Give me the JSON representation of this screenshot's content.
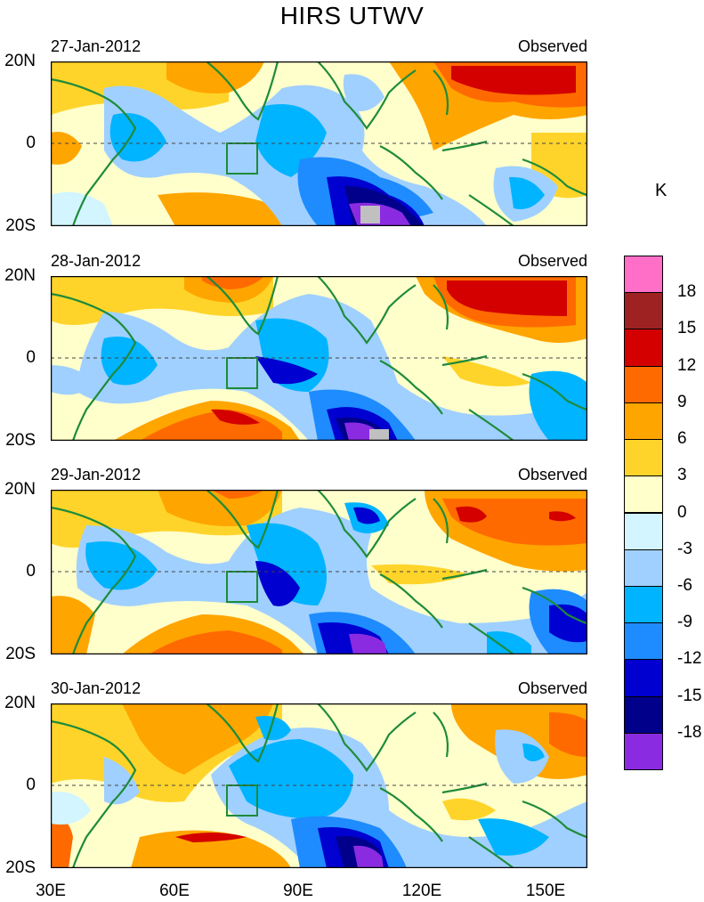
{
  "title": "HIRS UTWV",
  "panels": [
    {
      "date": "27-Jan-2012",
      "label": "Observed"
    },
    {
      "date": "28-Jan-2012",
      "label": "Observed"
    },
    {
      "date": "29-Jan-2012",
      "label": "Observed"
    },
    {
      "date": "30-Jan-2012",
      "label": "Observed"
    }
  ],
  "axes": {
    "lat_labels": [
      "20N",
      "0",
      "20S"
    ],
    "lon_labels": [
      "30E",
      "60E",
      "90E",
      "120E",
      "150E"
    ]
  },
  "colorbar": {
    "unit": "K",
    "labels": [
      "18",
      "15",
      "12",
      "9",
      "6",
      "3",
      "0",
      "-3",
      "-6",
      "-9",
      "-12",
      "-15",
      "-18"
    ],
    "colors": [
      "#ff6ec7",
      "#9e2222",
      "#d40000",
      "#ff6a00",
      "#ffa500",
      "#ffd42a",
      "#ffffcc",
      "#d2f5ff",
      "#a0d0ff",
      "#00b4ff",
      "#1e8cff",
      "#0000d0",
      "#00008b",
      "#8a2be2"
    ]
  }
}
